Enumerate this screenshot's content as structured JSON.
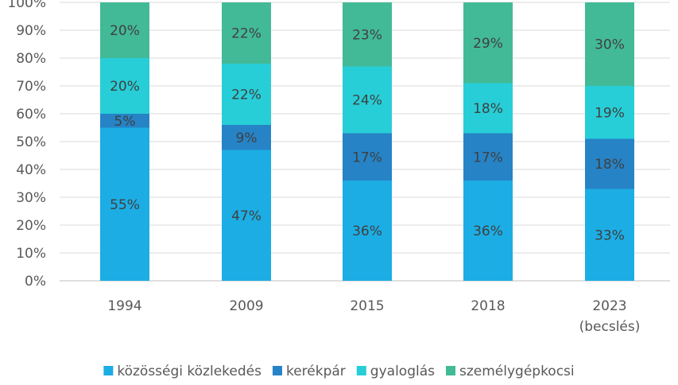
{
  "chart_data": {
    "type": "bar",
    "stacked": true,
    "categories": [
      "1994",
      "2009",
      "2015",
      "2018",
      "2023\n(becslés)"
    ],
    "series": [
      {
        "name": "közösségi közlekedés",
        "values": [
          55,
          47,
          36,
          36,
          33
        ],
        "labels": [
          "55%",
          "47%",
          "36%",
          "36%",
          "33%"
        ],
        "color": "#1CADE4"
      },
      {
        "name": "kerékpár",
        "values": [
          5,
          9,
          17,
          17,
          18
        ],
        "labels": [
          "5%",
          "9%",
          "17%",
          "17%",
          "18%"
        ],
        "color": "#2683C6"
      },
      {
        "name": "gyaloglás",
        "values": [
          20,
          22,
          24,
          18,
          19
        ],
        "labels": [
          "20%",
          "22%",
          "24%",
          "18%",
          "19%"
        ],
        "color": "#27CED7"
      },
      {
        "name": "személygépkocsi",
        "values": [
          20,
          22,
          23,
          29,
          30
        ],
        "labels": [
          "20%",
          "22%",
          "23%",
          "29%",
          "30%"
        ],
        "color": "#42BA97"
      }
    ],
    "ylim": [
      0,
      100
    ],
    "yticks": [
      "0%",
      "10%",
      "20%",
      "30%",
      "40%",
      "50%",
      "60%",
      "70%",
      "80%",
      "90%",
      "100%"
    ],
    "grid": true,
    "legend": "bottom",
    "title": "",
    "xlabel": "",
    "ylabel": ""
  }
}
